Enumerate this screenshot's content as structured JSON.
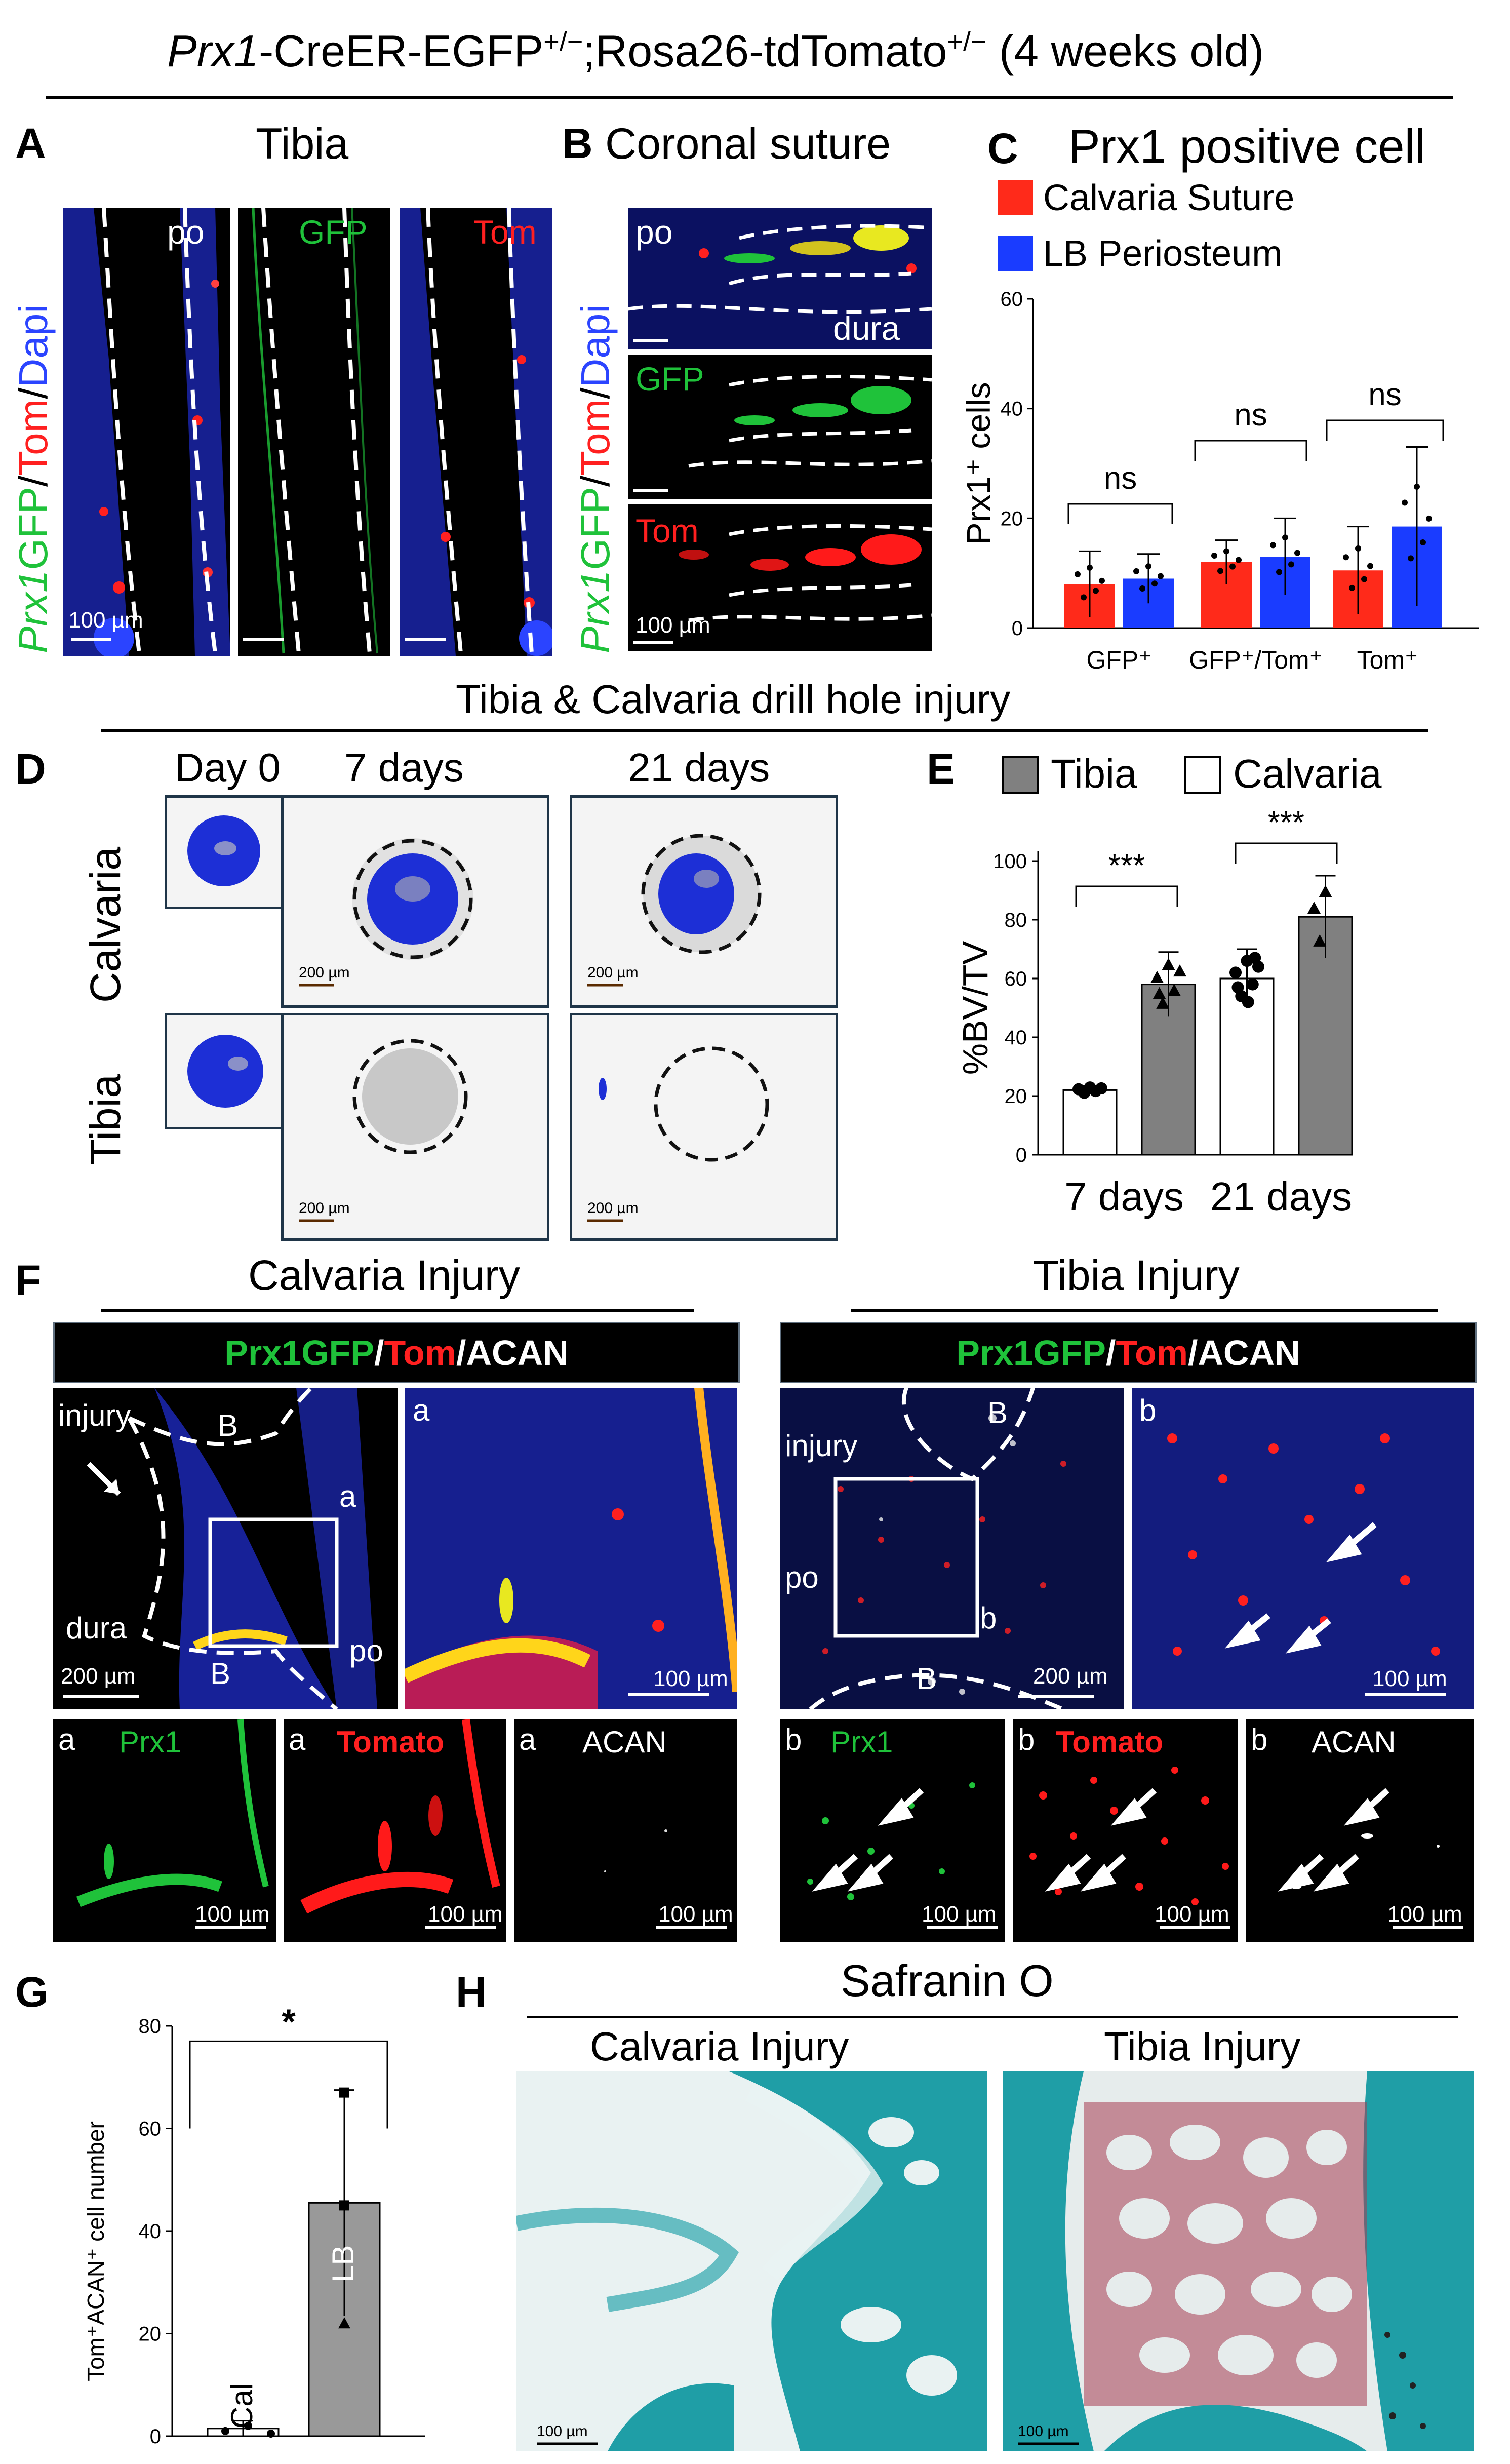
{
  "header": {
    "title_italic": "Prx1",
    "title_main": "-CreER-EGFP",
    "title_sup1": "+/−",
    "title_mid": ";Rosa26-tdTomato",
    "title_sup2": "+/−",
    "title_end": " (4 weeks old)"
  },
  "panelA": {
    "letter": "A",
    "title": "Tibia",
    "ylabel_prx": "Prx1",
    "ylabel_gfp": "GFP",
    "ylabel_slash1": "/",
    "ylabel_tom": "Tom",
    "ylabel_slash2": "/",
    "ylabel_dapi": "Dapi",
    "label_po": "po",
    "label_gfp": "GFP",
    "label_tom": "Tom",
    "scale": "100 µm"
  },
  "panelB": {
    "letter": "B",
    "title": "Coronal suture",
    "label_po": "po",
    "label_dura": "dura",
    "label_gfp": "GFP",
    "label_tom": "Tom",
    "scale": "100 µm",
    "ylabel_prx": "Prx1",
    "ylabel_gfp": "GFP",
    "ylabel_slash1": "/",
    "ylabel_tom": "Tom",
    "ylabel_slash2": "/",
    "ylabel_dapi": "Dapi"
  },
  "panelC": {
    "letter": "C",
    "chart_data": {
      "type": "bar",
      "title": "Prx1 positive cell",
      "ylabel": "Prx1⁺ cells",
      "ylim": [
        0,
        60
      ],
      "yticks": [
        "0",
        "20",
        "40",
        "60"
      ],
      "categories": [
        "GFP⁺",
        "GFP⁺/Tom⁺",
        "Tom⁺"
      ],
      "series": [
        {
          "name": "Calvaria Suture",
          "color": "#ff2a1a",
          "values": [
            8,
            12,
            10.5
          ],
          "errors": [
            6,
            4,
            8
          ]
        },
        {
          "name": "LB Periosteum",
          "color": "#1a3cff",
          "values": [
            9,
            13,
            18.5
          ],
          "errors": [
            4.5,
            7,
            14.5
          ]
        }
      ],
      "significance": [
        "ns",
        "ns",
        "ns"
      ]
    }
  },
  "sectionDE": {
    "title": "Tibia & Calvaria drill hole injury"
  },
  "panelD": {
    "letter": "D",
    "col_day0": "Day 0",
    "col_7": "7 days",
    "col_21": "21 days",
    "row_calvaria": "Calvaria",
    "row_tibia": "Tibia",
    "scale": "200 µm"
  },
  "panelE": {
    "letter": "E",
    "chart_data": {
      "type": "bar",
      "ylabel": "%BV/TV",
      "ylim": [
        0,
        100
      ],
      "yticks": [
        "0",
        "20",
        "40",
        "60",
        "80",
        "100"
      ],
      "categories": [
        "7 days",
        "21 days"
      ],
      "series": [
        {
          "name": "Calvaria",
          "color": "#ffffff",
          "values": [
            22,
            60
          ],
          "errors": [
            1.5,
            10
          ]
        },
        {
          "name": "Tibia",
          "color": "#808080",
          "values": [
            58,
            81
          ],
          "errors": [
            11,
            14
          ]
        }
      ],
      "significance": [
        "***",
        "***"
      ]
    }
  },
  "panelF": {
    "letter": "F",
    "left_title": "Calvaria Injury",
    "right_title": "Tibia Injury",
    "hdr_prx": "Prx1GFP",
    "hdr_slash1": "/",
    "hdr_tom": "Tom",
    "hdr_slash2": "/",
    "hdr_acan": "ACAN",
    "lbl_injury": "injury",
    "lbl_B": "B",
    "lbl_a": "a",
    "lbl_b": "b",
    "lbl_dura": "dura",
    "lbl_po": "po",
    "scale200": "200 µm",
    "scale100": "100 µm",
    "lbl_prx1": "Prx1",
    "lbl_tomato": "Tomato",
    "lbl_acan": "ACAN"
  },
  "panelG": {
    "letter": "G",
    "chart_data": {
      "type": "bar",
      "ylabel": "Tom⁺ACAN⁺ cell number",
      "ylim": [
        0,
        80
      ],
      "yticks": [
        "0",
        "20",
        "40",
        "60",
        "80"
      ],
      "categories": [
        "Cal",
        "LB"
      ],
      "values": [
        1.5,
        45.5
      ],
      "errors": [
        1.5,
        22
      ],
      "colors": [
        "#ffffff",
        "#999999"
      ],
      "significance": "*"
    }
  },
  "panelH": {
    "letter": "H",
    "title": "Safranin O",
    "left_title": "Calvaria Injury",
    "right_title": "Tibia Injury",
    "scale": "100 µm"
  }
}
